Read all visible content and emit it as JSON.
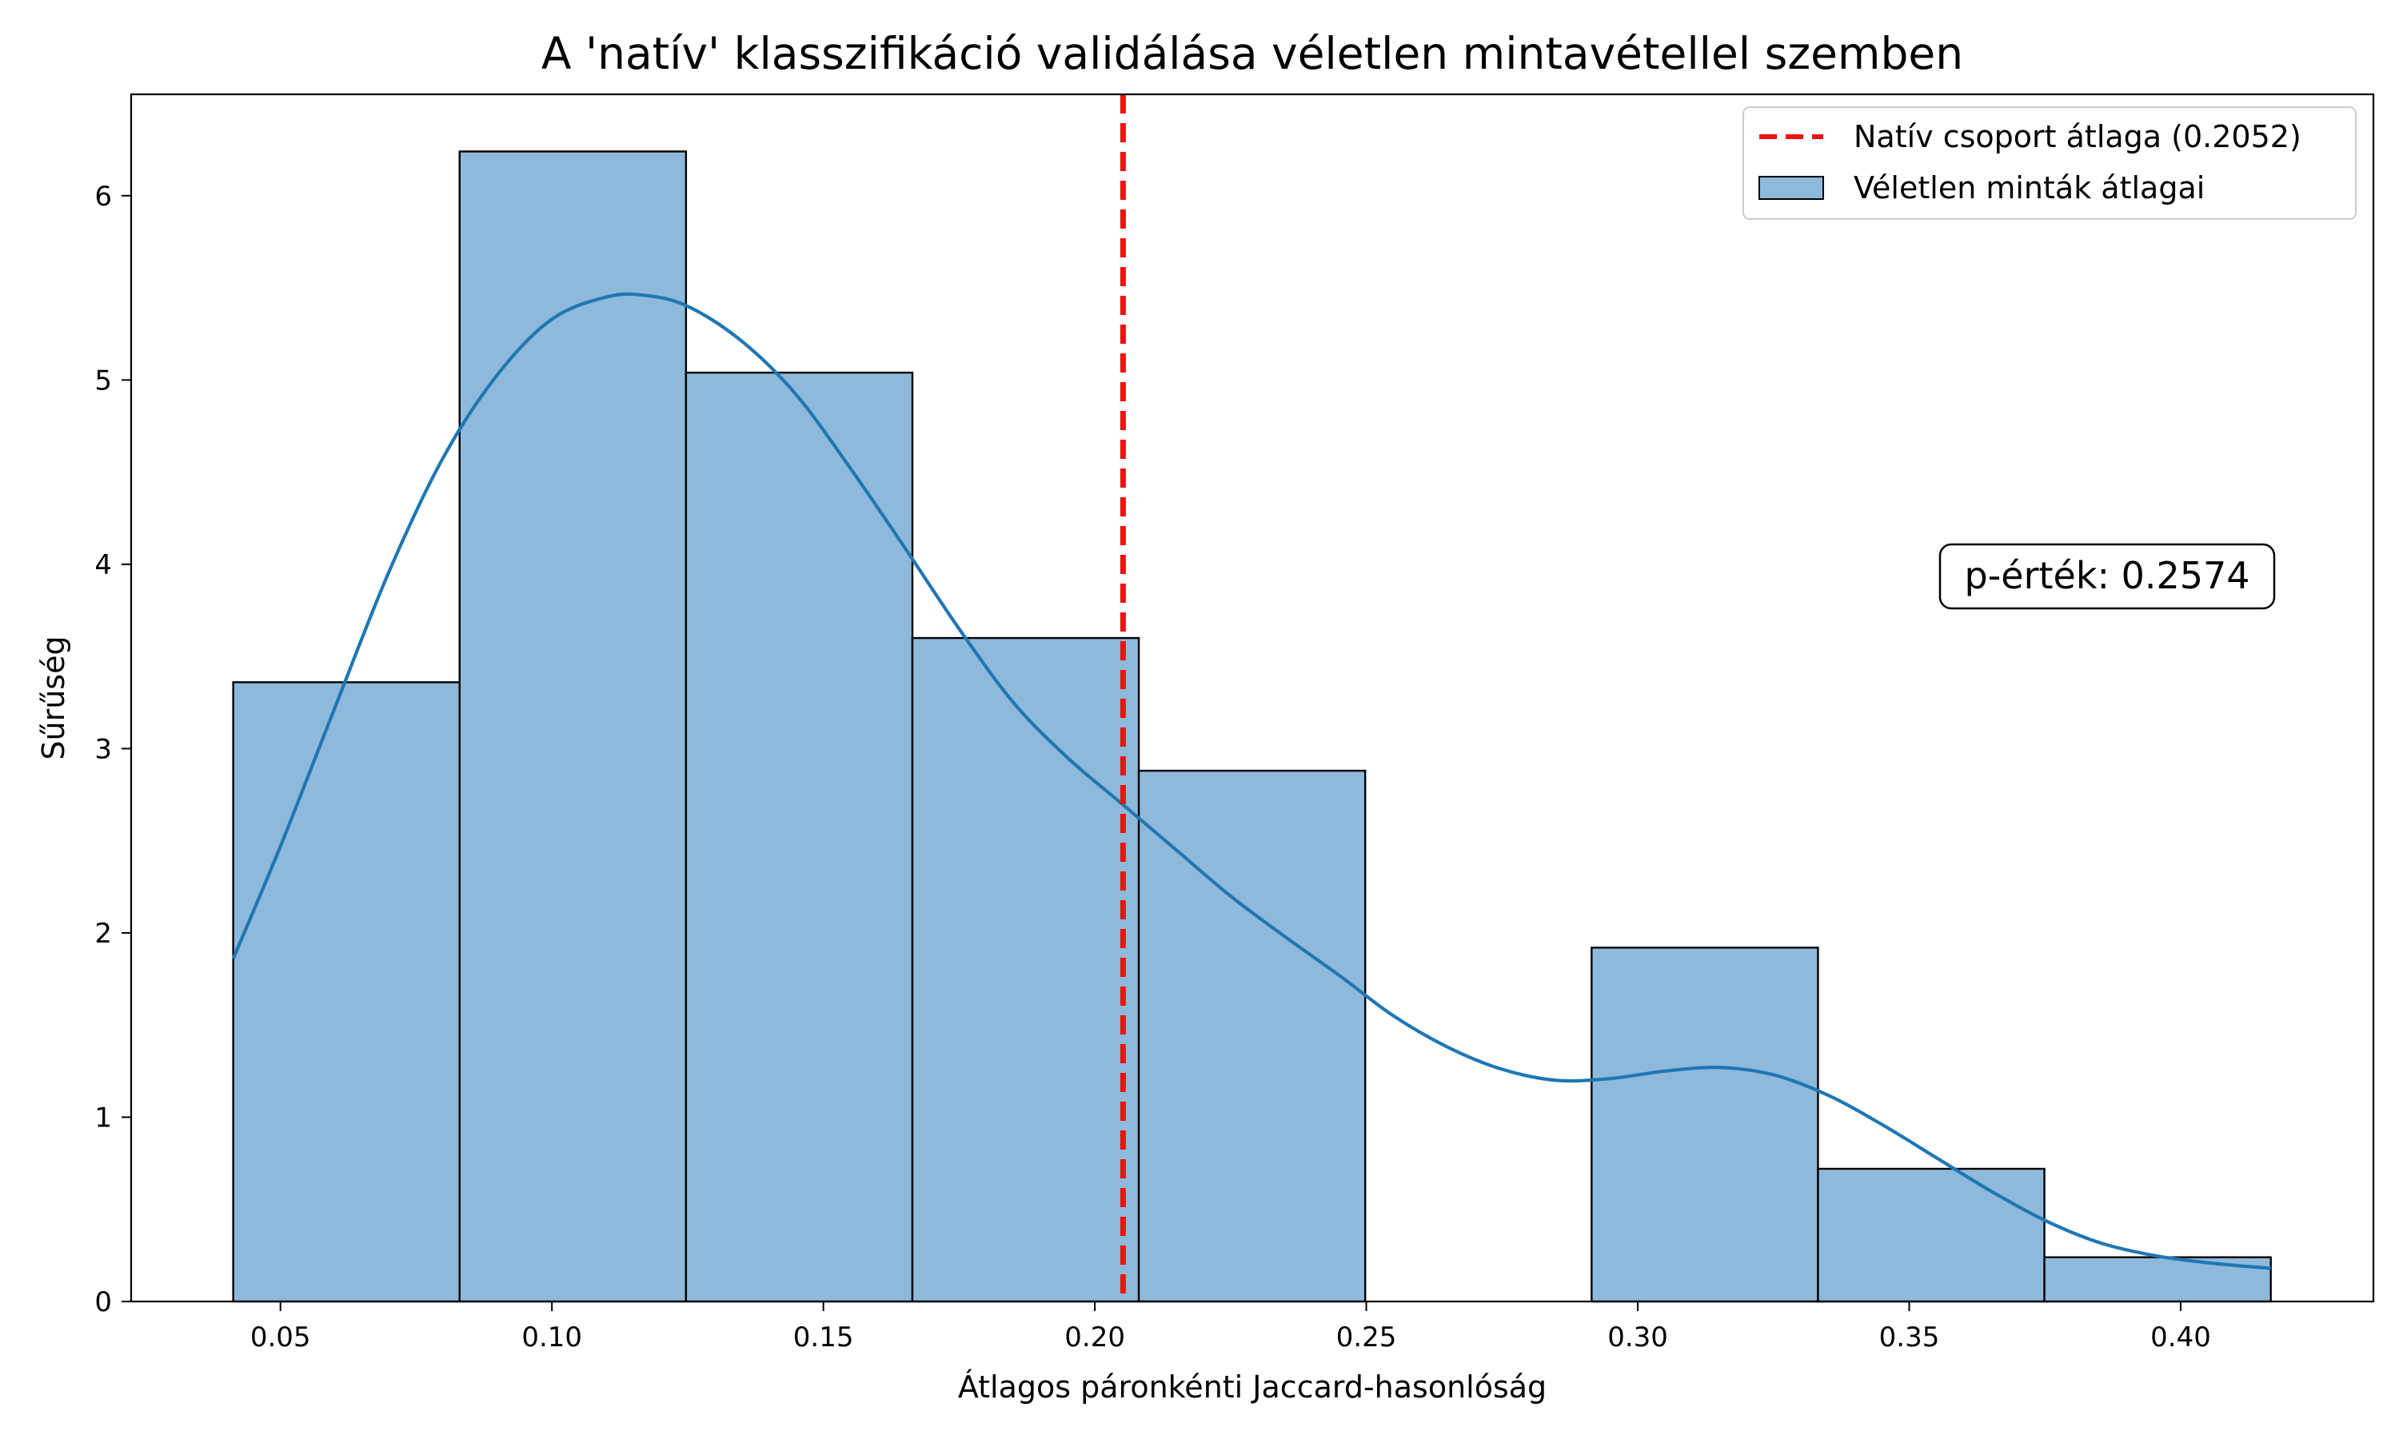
{
  "chart_data": {
    "type": "histogram",
    "title": "A 'natív' klasszifikáció validálása véletlen mintavétellel szemben",
    "xlabel": "Átlagos páronkénti Jaccard-hasonlóság",
    "ylabel": "Sűrűség",
    "xlim": [
      0.0225,
      0.4355
    ],
    "ylim": [
      0,
      6.55
    ],
    "xticks": [
      0.05,
      0.1,
      0.15,
      0.2,
      0.25,
      0.3,
      0.35,
      0.4
    ],
    "xtick_labels": [
      "0.05",
      "0.10",
      "0.15",
      "0.20",
      "0.25",
      "0.30",
      "0.35",
      "0.40"
    ],
    "yticks": [
      0,
      1,
      2,
      3,
      4,
      5,
      6
    ],
    "ytick_labels": [
      "0",
      "1",
      "2",
      "3",
      "4",
      "5",
      "6"
    ],
    "bins": [
      {
        "x0": 0.0413,
        "x1": 0.083,
        "density": 3.36
      },
      {
        "x0": 0.083,
        "x1": 0.1247,
        "density": 6.24
      },
      {
        "x0": 0.1247,
        "x1": 0.1664,
        "density": 5.04
      },
      {
        "x0": 0.1664,
        "x1": 0.2081,
        "density": 3.6
      },
      {
        "x0": 0.2081,
        "x1": 0.2498,
        "density": 2.88
      },
      {
        "x0": 0.2498,
        "x1": 0.2915,
        "density": 0.0
      },
      {
        "x0": 0.2915,
        "x1": 0.3332,
        "density": 1.92
      },
      {
        "x0": 0.3332,
        "x1": 0.3749,
        "density": 0.72
      },
      {
        "x0": 0.3749,
        "x1": 0.4166,
        "density": 0.24
      }
    ],
    "kde": {
      "x": [
        0.0413,
        0.05,
        0.06,
        0.07,
        0.08,
        0.09,
        0.1,
        0.11,
        0.117,
        0.125,
        0.135,
        0.145,
        0.155,
        0.165,
        0.175,
        0.185,
        0.195,
        0.205,
        0.215,
        0.225,
        0.235,
        0.245,
        0.255,
        0.265,
        0.275,
        0.285,
        0.295,
        0.305,
        0.315,
        0.325,
        0.335,
        0.345,
        0.355,
        0.365,
        0.375,
        0.385,
        0.395,
        0.405,
        0.4166
      ],
      "y": [
        1.86,
        2.47,
        3.22,
        3.96,
        4.58,
        5.03,
        5.33,
        5.45,
        5.46,
        5.4,
        5.21,
        4.92,
        4.52,
        4.09,
        3.65,
        3.25,
        2.95,
        2.7,
        2.45,
        2.2,
        1.98,
        1.77,
        1.55,
        1.38,
        1.26,
        1.2,
        1.21,
        1.25,
        1.27,
        1.23,
        1.12,
        0.96,
        0.78,
        0.6,
        0.44,
        0.32,
        0.25,
        0.21,
        0.18
      ]
    },
    "vline": {
      "x": 0.2052,
      "label": "Natív csoport átlaga (0.2052)",
      "color": "#ee1111",
      "style": "dashed"
    },
    "hist_label": "Véletlen minták átlagai",
    "bar_color": "#8fb9da",
    "kde_color": "#1f77b4",
    "annotation": {
      "text": "p-érték: 0.2574",
      "x": 0.36,
      "y": 3.93
    },
    "legend_placement": "top-right",
    "grid": false
  }
}
